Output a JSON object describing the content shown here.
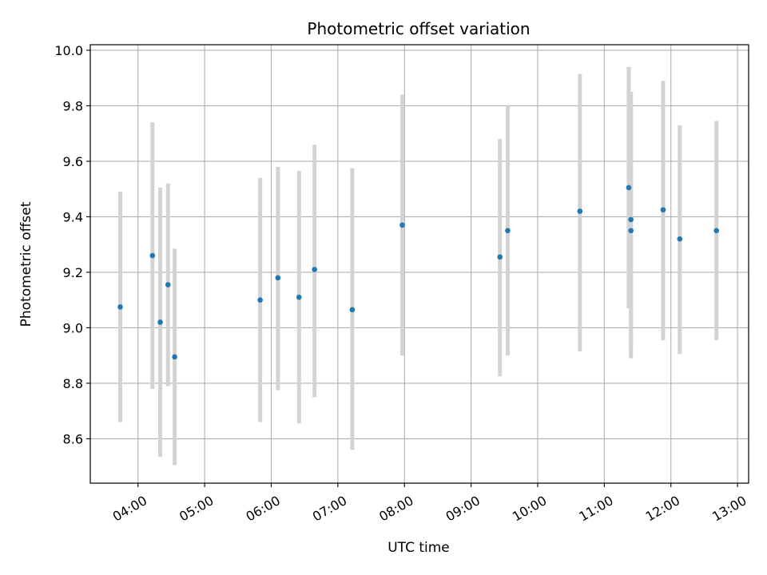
{
  "chart_data": {
    "type": "scatter",
    "title": "Photometric offset variation",
    "xlabel": "UTC time",
    "ylabel": "Photometric offset",
    "xlim": [
      "03:17",
      "13:10"
    ],
    "ylim": [
      8.44,
      10.02
    ],
    "xticks": [
      "04:00",
      "05:00",
      "06:00",
      "07:00",
      "08:00",
      "09:00",
      "10:00",
      "11:00",
      "12:00",
      "13:00"
    ],
    "yticks": [
      8.6,
      8.8,
      9.0,
      9.2,
      9.4,
      9.6,
      9.8,
      10.0
    ],
    "grid": true,
    "series": [
      {
        "points": [
          {
            "x": "03:44",
            "y": 9.075,
            "ylow": 8.66,
            "yhigh": 9.49
          },
          {
            "x": "04:13",
            "y": 9.26,
            "ylow": 8.78,
            "yhigh": 9.74
          },
          {
            "x": "04:20",
            "y": 9.02,
            "ylow": 8.535,
            "yhigh": 9.505
          },
          {
            "x": "04:27",
            "y": 9.155,
            "ylow": 8.79,
            "yhigh": 9.52
          },
          {
            "x": "04:33",
            "y": 8.895,
            "ylow": 8.505,
            "yhigh": 9.285
          },
          {
            "x": "05:50",
            "y": 9.1,
            "ylow": 8.66,
            "yhigh": 9.54
          },
          {
            "x": "06:06",
            "y": 9.18,
            "ylow": 8.775,
            "yhigh": 9.58
          },
          {
            "x": "06:25",
            "y": 9.11,
            "ylow": 8.655,
            "yhigh": 9.565
          },
          {
            "x": "06:39",
            "y": 9.21,
            "ylow": 8.75,
            "yhigh": 9.66
          },
          {
            "x": "07:13",
            "y": 9.065,
            "ylow": 8.56,
            "yhigh": 9.575
          },
          {
            "x": "07:58",
            "y": 9.37,
            "ylow": 8.9,
            "yhigh": 9.84
          },
          {
            "x": "09:26",
            "y": 9.255,
            "ylow": 8.825,
            "yhigh": 9.68
          },
          {
            "x": "09:33",
            "y": 9.35,
            "ylow": 8.9,
            "yhigh": 9.8
          },
          {
            "x": "10:38",
            "y": 9.42,
            "ylow": 8.915,
            "yhigh": 9.915
          },
          {
            "x": "11:22",
            "y": 9.505,
            "ylow": 9.07,
            "yhigh": 9.94
          },
          {
            "x": "11:24",
            "y": 9.39,
            "ylow": 8.935,
            "yhigh": 9.85
          },
          {
            "x": "11:24",
            "y": 9.35,
            "ylow": 8.89,
            "yhigh": 9.81
          },
          {
            "x": "11:53",
            "y": 9.425,
            "ylow": 8.955,
            "yhigh": 9.89
          },
          {
            "x": "12:08",
            "y": 9.32,
            "ylow": 8.905,
            "yhigh": 9.73
          },
          {
            "x": "12:41",
            "y": 9.35,
            "ylow": 8.955,
            "yhigh": 9.745
          }
        ]
      }
    ],
    "colors": {
      "point": "#1f77b4",
      "errorbar": "#d3d3d3",
      "grid": "#b0b0b0",
      "axes": "#000000"
    }
  }
}
